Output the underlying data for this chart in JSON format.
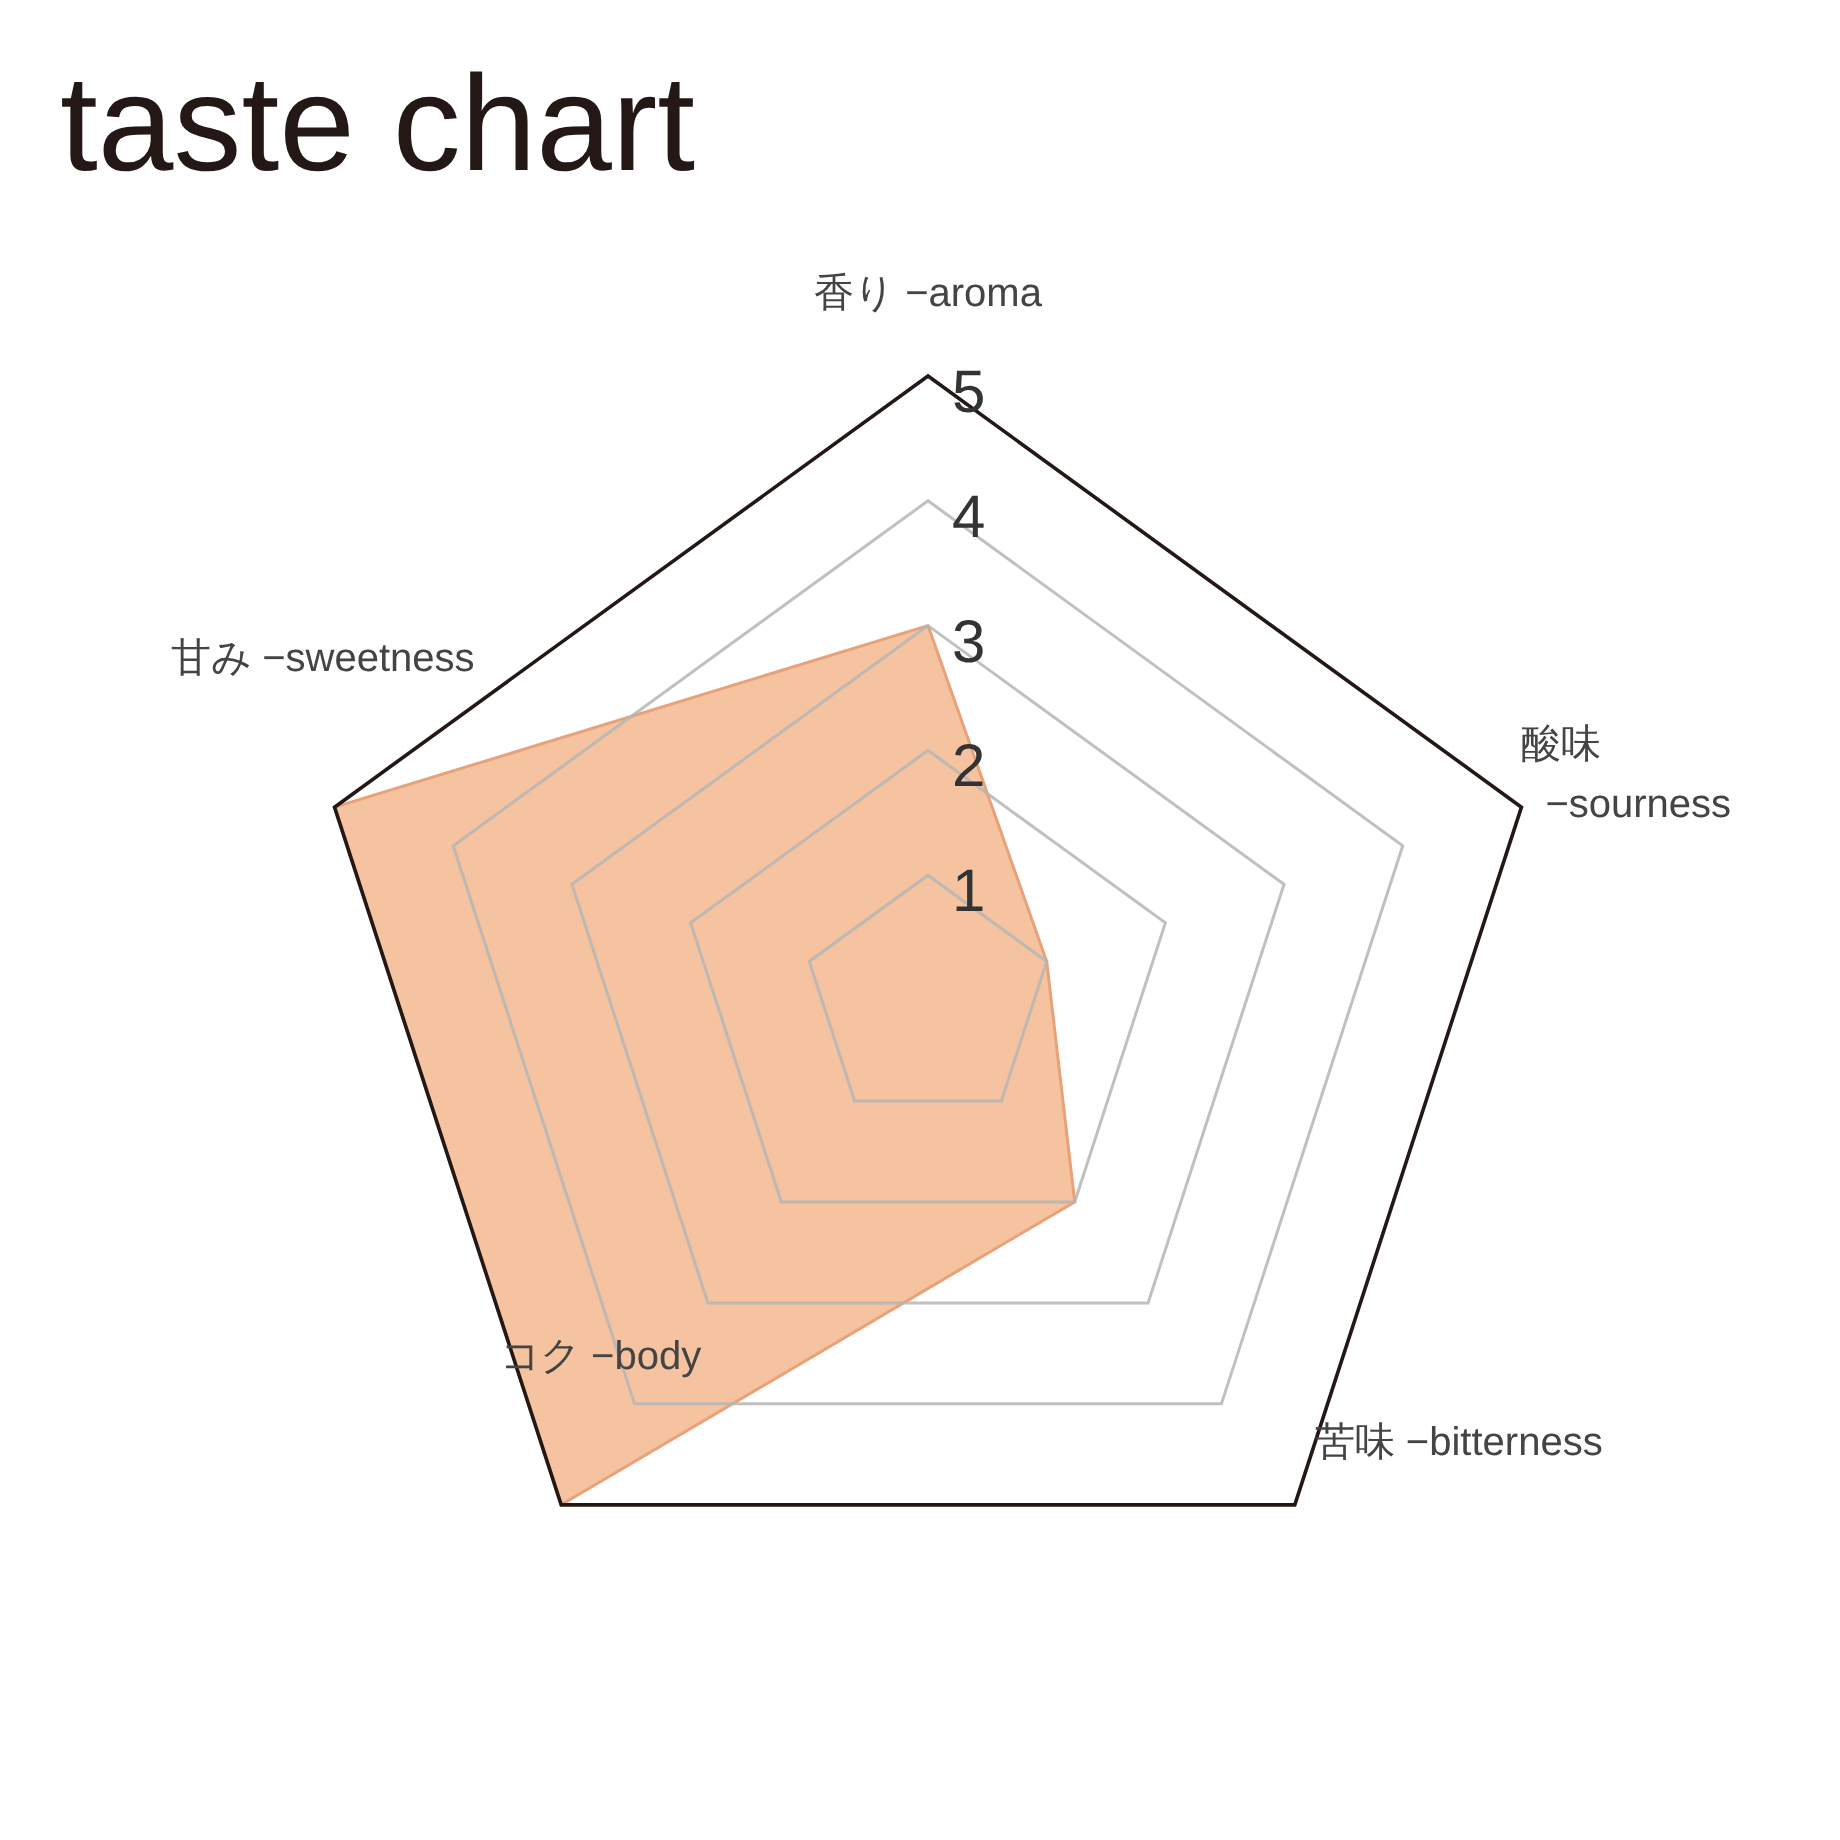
{
  "chart_data": {
    "type": "radar",
    "title": "taste chart",
    "categories": [
      "香り −aroma",
      "酸味 −sourness",
      "苦味 −bitterness",
      "コク −body",
      "甘み −sweetness"
    ],
    "series": [
      {
        "color": "#f3b88e",
        "values": [
          3,
          1,
          2,
          5,
          5
        ]
      }
    ],
    "ylim": [
      0,
      5
    ],
    "yticks": [
      1,
      2,
      3,
      4,
      5
    ],
    "grid": true
  }
}
